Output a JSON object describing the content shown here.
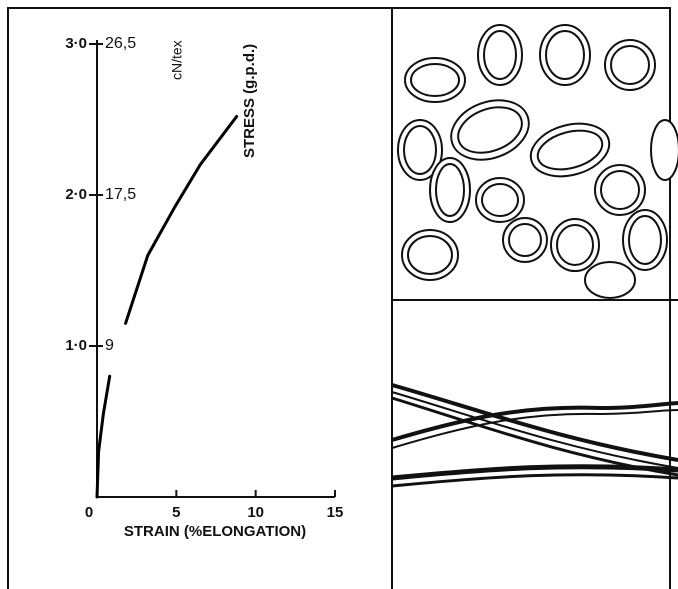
{
  "chart_data": {
    "type": "line",
    "y_label": "STRESS (g.p.d.)",
    "x_label": "STRAIN (%ELONGATION)",
    "y2_label": "cN/tex",
    "x": [
      0,
      0.1,
      0.4,
      0.8,
      1.5,
      1.8,
      3.2,
      4.9,
      6.5,
      8.8
    ],
    "series": [
      {
        "color": "#000000",
        "values": [
          0,
          0.3,
          0.55,
          0.8,
          null,
          1.15,
          1.6,
          1.92,
          2.2,
          2.52
        ]
      }
    ],
    "xlim": [
      0,
      15
    ],
    "xticks": [
      0,
      5,
      10,
      15
    ],
    "ylim": [
      0,
      3
    ],
    "yticks": [
      {
        "value": 1,
        "label": "1·0"
      },
      {
        "value": 2,
        "label": "2·0"
      },
      {
        "value": 3,
        "label": "3·0"
      }
    ],
    "y2ticks": [
      9,
      {
        "value": 17.5,
        "label": "17,5"
      },
      {
        "value": 26.5,
        "label": "26,5"
      }
    ]
  }
}
